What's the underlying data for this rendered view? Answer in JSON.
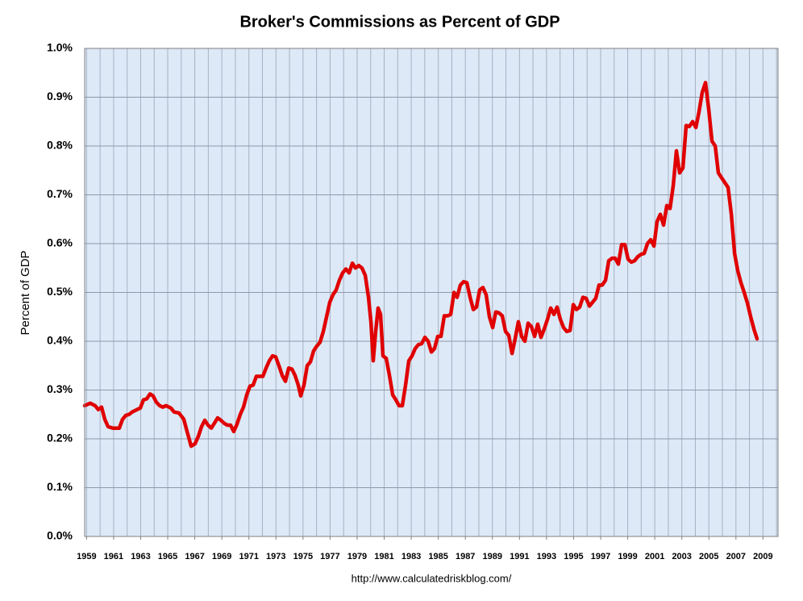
{
  "chart_data": {
    "type": "line",
    "title": "Broker's Commissions as Percent of GDP",
    "ylabel": "Percent of GDP",
    "source": "http://www.calculatedriskblog.com/",
    "xlim": [
      1958.86,
      2010.11
    ],
    "xticks": [
      1959,
      1961,
      1963,
      1965,
      1967,
      1969,
      1971,
      1973,
      1975,
      1977,
      1979,
      1981,
      1983,
      1985,
      1987,
      1989,
      1991,
      1993,
      1995,
      1997,
      1999,
      2001,
      2003,
      2005,
      2007,
      2009
    ],
    "x_minor_ticks": [
      1959,
      1960,
      1961,
      1962,
      1963,
      1964,
      1965,
      1966,
      1967,
      1968,
      1969,
      1970,
      1971,
      1972,
      1973,
      1974,
      1975,
      1976,
      1977,
      1978,
      1979,
      1980,
      1981,
      1982,
      1983,
      1984,
      1985,
      1986,
      1987,
      1988,
      1989,
      1990,
      1991,
      1992,
      1993,
      1994,
      1995,
      1996,
      1997,
      1998,
      1999,
      2000,
      2001,
      2002,
      2003,
      2004,
      2005,
      2006,
      2007,
      2008,
      2009,
      2010
    ],
    "ylim": [
      0,
      1.0
    ],
    "yticks": [
      {
        "value": 0,
        "label": "0.0%"
      },
      {
        "value": 0.1,
        "label": "0.1%"
      },
      {
        "value": 0.2,
        "label": "0.2%"
      },
      {
        "value": 0.3,
        "label": "0.3%"
      },
      {
        "value": 0.4,
        "label": "0.4%"
      },
      {
        "value": 0.5,
        "label": "0.5%"
      },
      {
        "value": 0.6,
        "label": "0.6%"
      },
      {
        "value": 0.7,
        "label": "0.7%"
      },
      {
        "value": 0.8,
        "label": "0.8%"
      },
      {
        "value": 0.9,
        "label": "0.9%"
      },
      {
        "value": 1.0,
        "label": "1.0%"
      }
    ],
    "grid": true,
    "x": [
      1958.86,
      1959.28,
      1959.63,
      1959.87,
      1960.11,
      1960.35,
      1960.59,
      1960.94,
      1961.42,
      1961.66,
      1961.9,
      1962.14,
      1962.37,
      1962.73,
      1962.97,
      1963.21,
      1963.45,
      1963.69,
      1963.92,
      1964.16,
      1964.4,
      1964.64,
      1964.88,
      1965.24,
      1965.47,
      1965.83,
      1966.19,
      1966.43,
      1966.73,
      1967.02,
      1967.26,
      1967.5,
      1967.74,
      1967.98,
      1968.22,
      1968.45,
      1968.69,
      1968.93,
      1969.17,
      1969.41,
      1969.65,
      1969.88,
      1970.12,
      1970.36,
      1970.6,
      1970.84,
      1971.08,
      1971.31,
      1971.55,
      1971.79,
      1972.03,
      1972.27,
      1972.51,
      1972.75,
      1972.98,
      1973.22,
      1973.46,
      1973.7,
      1973.94,
      1974.18,
      1974.41,
      1974.65,
      1974.83,
      1975.07,
      1975.31,
      1975.55,
      1975.78,
      1976.02,
      1976.26,
      1976.5,
      1976.74,
      1976.98,
      1977.21,
      1977.45,
      1977.69,
      1977.93,
      1978.17,
      1978.41,
      1978.65,
      1978.88,
      1979.12,
      1979.36,
      1979.6,
      1979.84,
      1980.02,
      1980.19,
      1980.37,
      1980.55,
      1980.73,
      1980.91,
      1981.15,
      1981.39,
      1981.63,
      1981.86,
      1982.1,
      1982.34,
      1982.58,
      1982.82,
      1983.06,
      1983.29,
      1983.53,
      1983.77,
      1984.01,
      1984.25,
      1984.49,
      1984.72,
      1984.96,
      1985.2,
      1985.44,
      1985.68,
      1985.92,
      1986.16,
      1986.39,
      1986.63,
      1986.87,
      1987.11,
      1987.35,
      1987.59,
      1987.82,
      1988.06,
      1988.3,
      1988.54,
      1988.78,
      1989.02,
      1989.25,
      1989.49,
      1989.73,
      1989.97,
      1990.21,
      1990.45,
      1990.68,
      1990.92,
      1991.16,
      1991.4,
      1991.64,
      1991.88,
      1992.12,
      1992.35,
      1992.59,
      1992.83,
      1993.07,
      1993.31,
      1993.55,
      1993.78,
      1994.02,
      1994.26,
      1994.5,
      1994.74,
      1994.98,
      1995.21,
      1995.45,
      1995.69,
      1995.93,
      1996.17,
      1996.41,
      1996.64,
      1996.88,
      1997.12,
      1997.36,
      1997.6,
      1997.84,
      1998.08,
      1998.31,
      1998.55,
      1998.79,
      1999.03,
      1999.27,
      1999.51,
      1999.74,
      1999.98,
      2000.22,
      2000.46,
      2000.7,
      2000.94,
      2001.17,
      2001.41,
      2001.65,
      2001.89,
      2002.13,
      2002.37,
      2002.6,
      2002.84,
      2003.08,
      2003.32,
      2003.56,
      2003.8,
      2004.04,
      2004.27,
      2004.51,
      2004.75,
      2004.99,
      2005.23,
      2005.47,
      2005.7,
      2005.94,
      2006.18,
      2006.42,
      2006.66,
      2006.9,
      2007.13,
      2007.37,
      2007.61,
      2007.85,
      2008.09,
      2008.33,
      2008.56
    ],
    "series": [
      {
        "name": "Broker's Commissions",
        "color": "#e00000",
        "values": [
          0.268,
          0.273,
          0.268,
          0.26,
          0.265,
          0.24,
          0.225,
          0.222,
          0.222,
          0.24,
          0.248,
          0.25,
          0.255,
          0.26,
          0.263,
          0.28,
          0.282,
          0.292,
          0.288,
          0.275,
          0.268,
          0.265,
          0.268,
          0.263,
          0.255,
          0.253,
          0.24,
          0.215,
          0.185,
          0.19,
          0.205,
          0.225,
          0.238,
          0.228,
          0.222,
          0.232,
          0.243,
          0.238,
          0.232,
          0.228,
          0.228,
          0.215,
          0.23,
          0.25,
          0.265,
          0.29,
          0.308,
          0.31,
          0.328,
          0.328,
          0.328,
          0.345,
          0.36,
          0.37,
          0.368,
          0.35,
          0.33,
          0.318,
          0.345,
          0.343,
          0.33,
          0.31,
          0.288,
          0.31,
          0.35,
          0.358,
          0.38,
          0.39,
          0.398,
          0.42,
          0.45,
          0.48,
          0.495,
          0.505,
          0.525,
          0.54,
          0.548,
          0.54,
          0.56,
          0.55,
          0.555,
          0.55,
          0.535,
          0.49,
          0.44,
          0.36,
          0.42,
          0.468,
          0.455,
          0.37,
          0.365,
          0.33,
          0.29,
          0.28,
          0.268,
          0.268,
          0.31,
          0.36,
          0.37,
          0.385,
          0.393,
          0.395,
          0.408,
          0.4,
          0.378,
          0.385,
          0.41,
          0.41,
          0.452,
          0.452,
          0.455,
          0.5,
          0.49,
          0.515,
          0.522,
          0.52,
          0.49,
          0.465,
          0.47,
          0.505,
          0.51,
          0.495,
          0.45,
          0.428,
          0.46,
          0.458,
          0.452,
          0.42,
          0.412,
          0.375,
          0.405,
          0.44,
          0.41,
          0.4,
          0.437,
          0.43,
          0.41,
          0.435,
          0.408,
          0.425,
          0.445,
          0.468,
          0.455,
          0.47,
          0.445,
          0.428,
          0.42,
          0.422,
          0.475,
          0.465,
          0.47,
          0.49,
          0.488,
          0.472,
          0.48,
          0.488,
          0.515,
          0.515,
          0.525,
          0.565,
          0.57,
          0.57,
          0.558,
          0.598,
          0.598,
          0.568,
          0.562,
          0.565,
          0.573,
          0.578,
          0.58,
          0.6,
          0.608,
          0.595,
          0.645,
          0.66,
          0.638,
          0.678,
          0.672,
          0.72,
          0.79,
          0.745,
          0.755,
          0.842,
          0.84,
          0.85,
          0.838,
          0.87,
          0.91,
          0.93,
          0.875,
          0.81,
          0.8,
          0.745,
          0.735,
          0.725,
          0.715,
          0.66,
          0.58,
          0.545,
          0.52,
          0.5,
          0.478,
          0.45,
          0.425,
          0.405
        ]
      }
    ]
  }
}
